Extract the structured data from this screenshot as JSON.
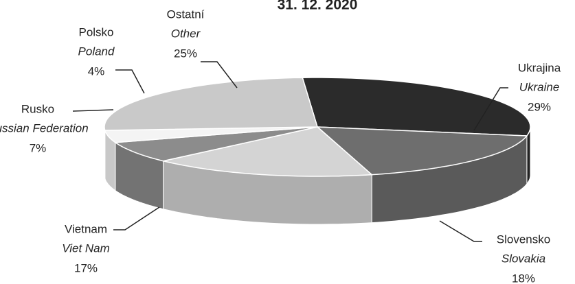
{
  "chart_data": {
    "type": "pie3d",
    "title": "31. 12. 2020",
    "categories": [
      "Ukrajina",
      "Slovensko",
      "Vietnam",
      "Rusko",
      "Polsko",
      "Ostatní"
    ],
    "categories_en": [
      "Ukraine",
      "Slovakia",
      "Viet Nam",
      "Russian Federation",
      "Poland",
      "Other"
    ],
    "values": [
      29,
      18,
      17,
      7,
      4,
      25
    ],
    "value_labels": [
      "29%",
      "18%",
      "17%",
      "7%",
      "4%",
      "25%"
    ],
    "colors": [
      "#2b2b2b",
      "#6e6e6e",
      "#d4d4d4",
      "#8c8c8c",
      "#f4f4f4",
      "#c9c9c9"
    ]
  }
}
